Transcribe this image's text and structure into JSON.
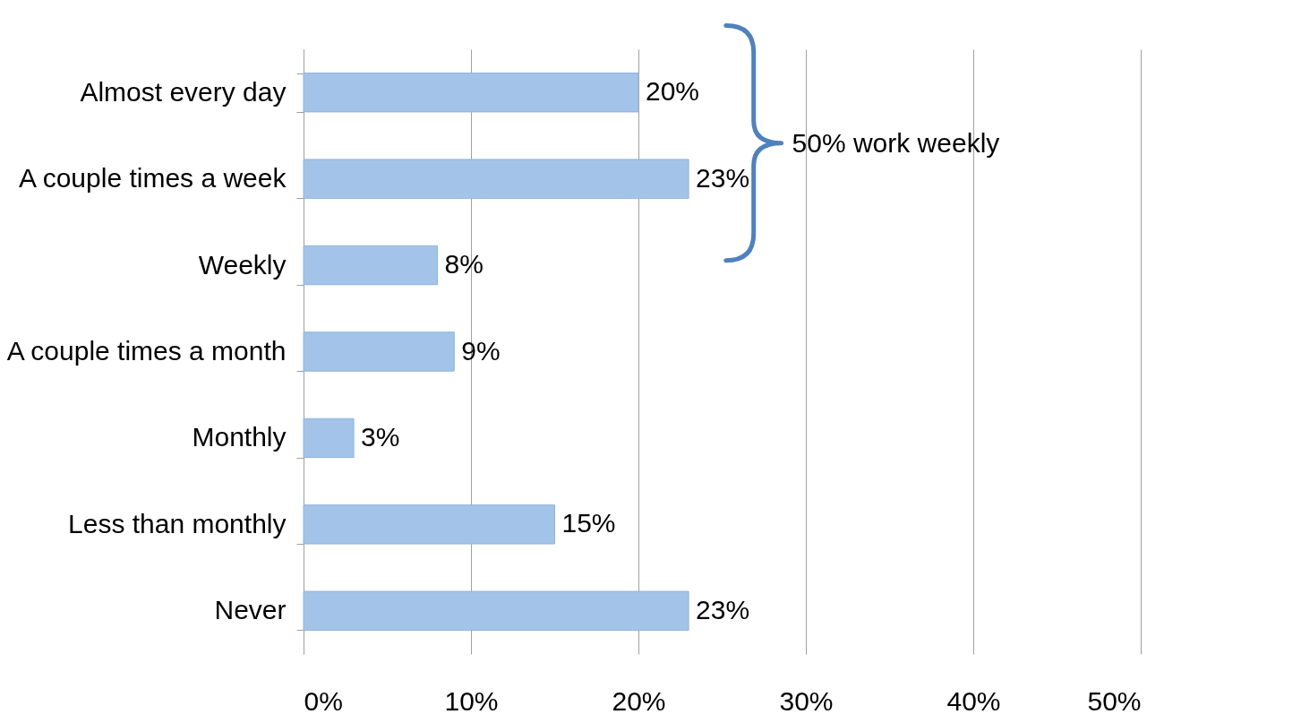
{
  "chart_data": {
    "type": "bar",
    "orientation": "horizontal",
    "categories": [
      "Almost every day",
      "A couple times a week",
      "Weekly",
      "A couple times a month",
      "Monthly",
      "Less than monthly",
      "Never"
    ],
    "values": [
      20,
      23,
      8,
      9,
      3,
      15,
      23
    ],
    "value_labels": [
      "20%",
      "23%",
      "8%",
      "9%",
      "3%",
      "15%",
      "23%"
    ],
    "color": "#a3c4e8",
    "xlim": [
      0,
      50
    ],
    "xticks": [
      {
        "value": 0,
        "label": "0%"
      },
      {
        "value": 10,
        "label": "10%"
      },
      {
        "value": 20,
        "label": "20%"
      },
      {
        "value": 30,
        "label": "30%"
      },
      {
        "value": 40,
        "label": "40%"
      },
      {
        "value": 50,
        "label": "50%"
      }
    ],
    "grid": "x",
    "annotations": [
      "50% work weekly"
    ]
  }
}
